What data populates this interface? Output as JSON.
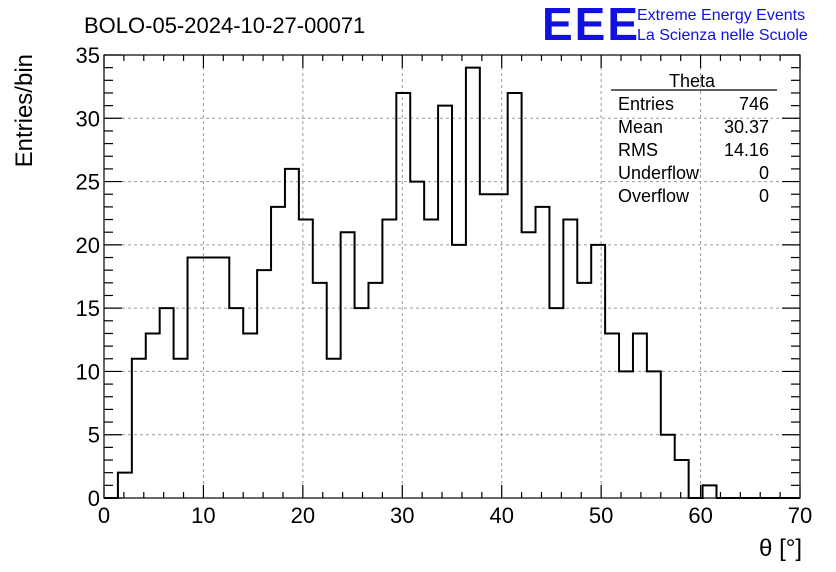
{
  "title": "BOLO-05-2024-10-27-00071",
  "logo": {
    "mark": "EEE",
    "line1": "Extreme Energy Events",
    "line2": "La Scienza nelle Scuole",
    "color": "#1010e0"
  },
  "stats": {
    "name": "Theta",
    "rows": [
      {
        "label": "Entries",
        "value": "746"
      },
      {
        "label": "Mean",
        "value": "30.37"
      },
      {
        "label": "RMS",
        "value": "14.16"
      },
      {
        "label": "Underflow",
        "value": "0"
      },
      {
        "label": "Overflow",
        "value": "0"
      }
    ]
  },
  "chart_data": {
    "type": "bar",
    "histogram": true,
    "xlabel": "θ [°]",
    "ylabel": "Entries/bin",
    "xlim": [
      0,
      70
    ],
    "ylim": [
      0,
      35
    ],
    "bin_width": 1.4,
    "bin_edges_start": 0,
    "xticks": [
      0,
      10,
      20,
      30,
      40,
      50,
      60,
      70
    ],
    "yticks": [
      0,
      5,
      10,
      15,
      20,
      25,
      30,
      35
    ],
    "grid": true,
    "values": [
      0,
      2,
      11,
      13,
      15,
      11,
      19,
      19,
      19,
      15,
      13,
      18,
      23,
      26,
      22,
      17,
      11,
      21,
      15,
      17,
      22,
      32,
      25,
      22,
      31,
      20,
      34,
      24,
      24,
      32,
      21,
      23,
      15,
      22,
      17,
      20,
      13,
      10,
      13,
      10,
      5,
      3,
      0,
      1,
      0,
      0,
      0,
      0,
      0,
      0
    ]
  }
}
